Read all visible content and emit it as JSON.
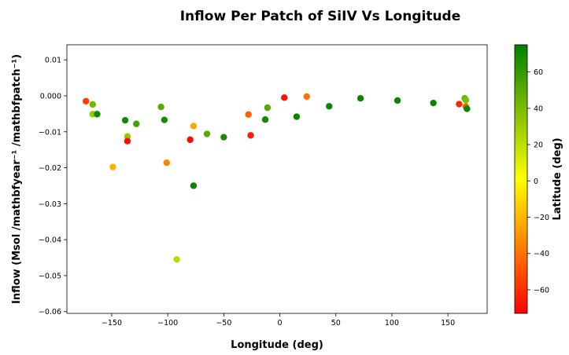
{
  "chart_data": {
    "type": "scatter",
    "title": "Inflow Per Patch of SiIV Vs Longitude",
    "xlabel": "Longitude (deg)",
    "ylabel": "Inflow (Msol /mathbfyear⁻¹ /mathbfpatch⁻¹)",
    "colorbar_label": "Latitude (deg)",
    "xlim": [
      -190,
      185
    ],
    "ylim": [
      -0.0605,
      0.0142
    ],
    "clim": [
      -73,
      75
    ],
    "xticks": [
      -150,
      -100,
      -50,
      0,
      50,
      100,
      150
    ],
    "xtick_labels": [
      "−150",
      "−100",
      "−50",
      "0",
      "50",
      "100",
      "150"
    ],
    "yticks": [
      0.01,
      0.0,
      -0.01,
      -0.02,
      -0.03,
      -0.04,
      -0.05,
      -0.06
    ],
    "ytick_labels": [
      "0.01",
      "0.000",
      "−0.01",
      "−0.02",
      "−0.03",
      "−0.04",
      "−0.05",
      "−0.06"
    ],
    "cticks": [
      60,
      40,
      20,
      0,
      -20,
      -40,
      -60
    ],
    "ctick_labels": [
      "60",
      "40",
      "20",
      "0",
      "−20",
      "−40",
      "−60"
    ],
    "colormap": [
      "#ff0000",
      "#ffff00",
      "#008000"
    ],
    "grid": false,
    "points": [
      {
        "x": -173,
        "y": -0.0015,
        "lat": -55
      },
      {
        "x": -167,
        "y": -0.0024,
        "lat": 42
      },
      {
        "x": -167,
        "y": -0.0051,
        "lat": 32
      },
      {
        "x": -163,
        "y": -0.0051,
        "lat": 70
      },
      {
        "x": -149,
        "y": -0.0198,
        "lat": -22
      },
      {
        "x": -138,
        "y": -0.0068,
        "lat": 70
      },
      {
        "x": -136,
        "y": -0.0113,
        "lat": 32
      },
      {
        "x": -136,
        "y": -0.0126,
        "lat": -70
      },
      {
        "x": -128,
        "y": -0.0078,
        "lat": 55
      },
      {
        "x": -106,
        "y": -0.0031,
        "lat": 50
      },
      {
        "x": -103,
        "y": -0.0067,
        "lat": 68
      },
      {
        "x": -101,
        "y": -0.0186,
        "lat": -35
      },
      {
        "x": -92,
        "y": -0.0455,
        "lat": 22
      },
      {
        "x": -80,
        "y": -0.0122,
        "lat": -70
      },
      {
        "x": -77,
        "y": -0.0084,
        "lat": -25
      },
      {
        "x": -77,
        "y": -0.025,
        "lat": 72
      },
      {
        "x": -65,
        "y": -0.0106,
        "lat": 50
      },
      {
        "x": -50,
        "y": -0.0115,
        "lat": 68
      },
      {
        "x": -28,
        "y": -0.0052,
        "lat": -45
      },
      {
        "x": -26,
        "y": -0.011,
        "lat": -65
      },
      {
        "x": -13,
        "y": -0.0066,
        "lat": 70
      },
      {
        "x": -11,
        "y": -0.0033,
        "lat": 50
      },
      {
        "x": 4,
        "y": -0.0005,
        "lat": -68
      },
      {
        "x": 15,
        "y": -0.0058,
        "lat": 72
      },
      {
        "x": 24,
        "y": -0.0002,
        "lat": -40
      },
      {
        "x": 44,
        "y": -0.0029,
        "lat": 72
      },
      {
        "x": 72,
        "y": -0.0007,
        "lat": 72
      },
      {
        "x": 105,
        "y": -0.0013,
        "lat": 72
      },
      {
        "x": 137,
        "y": -0.002,
        "lat": 72
      },
      {
        "x": 160,
        "y": -0.0023,
        "lat": -62
      },
      {
        "x": 165,
        "y": -0.0007,
        "lat": 45
      },
      {
        "x": 166,
        "y": -0.0012,
        "lat": 40
      },
      {
        "x": 166,
        "y": -0.003,
        "lat": -45
      },
      {
        "x": 167,
        "y": -0.0036,
        "lat": 72
      }
    ]
  }
}
